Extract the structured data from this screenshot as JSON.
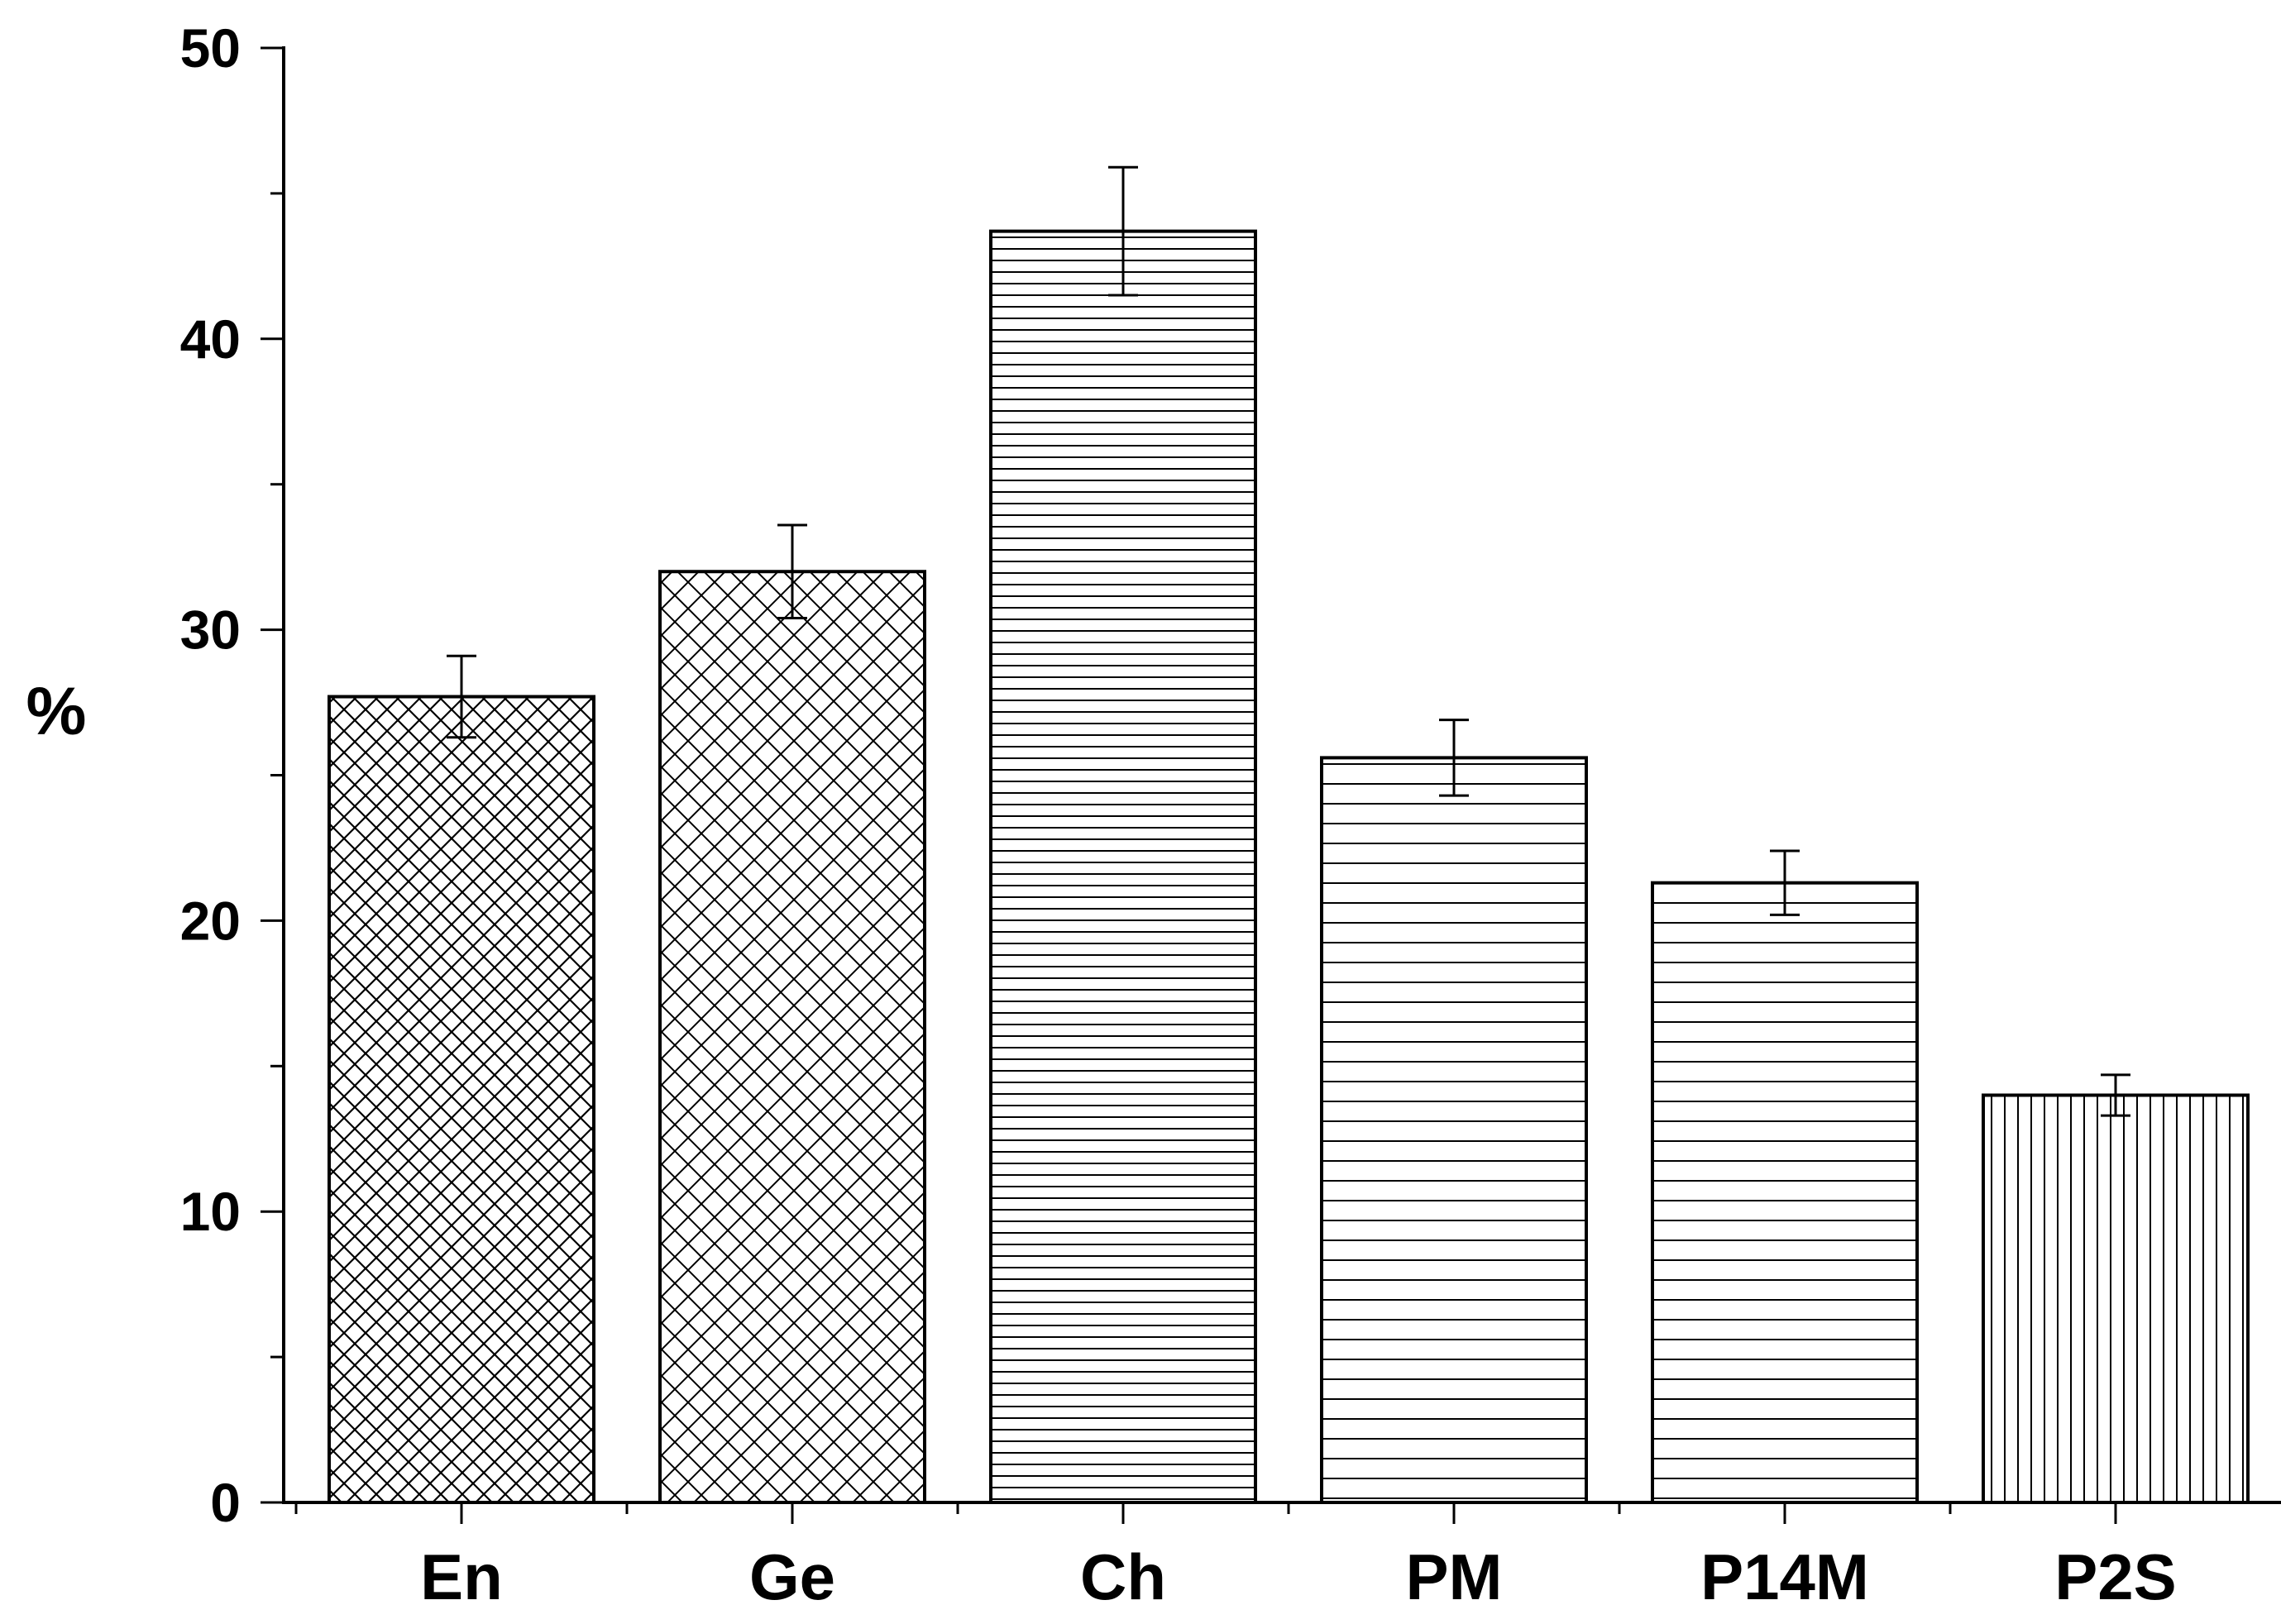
{
  "chart_data": {
    "type": "bar",
    "title": "",
    "xlabel": "",
    "ylabel": "%",
    "ylim": [
      0,
      50
    ],
    "y_ticks": [
      "0",
      "10",
      "20",
      "30",
      "40",
      "50"
    ],
    "categories": [
      "En",
      "Ge",
      "Ch",
      "PM",
      "P14M",
      "P2S"
    ],
    "series": [
      {
        "values": [
          27.7,
          32.0,
          43.7,
          25.6,
          21.3,
          14.0
        ],
        "errors": [
          1.4,
          1.6,
          2.2,
          1.3,
          1.1,
          0.7
        ],
        "patterns": [
          "crosshatch-dense",
          "crosshatch-wide",
          "horizontal-dense",
          "horizontal-wide",
          "horizontal-wide",
          "vertical-dense"
        ]
      }
    ],
    "grid": false,
    "legend": "none",
    "colors": {
      "bar_fill": "#ffffff",
      "bar_stroke": "#000000",
      "axis": "#000000"
    }
  }
}
